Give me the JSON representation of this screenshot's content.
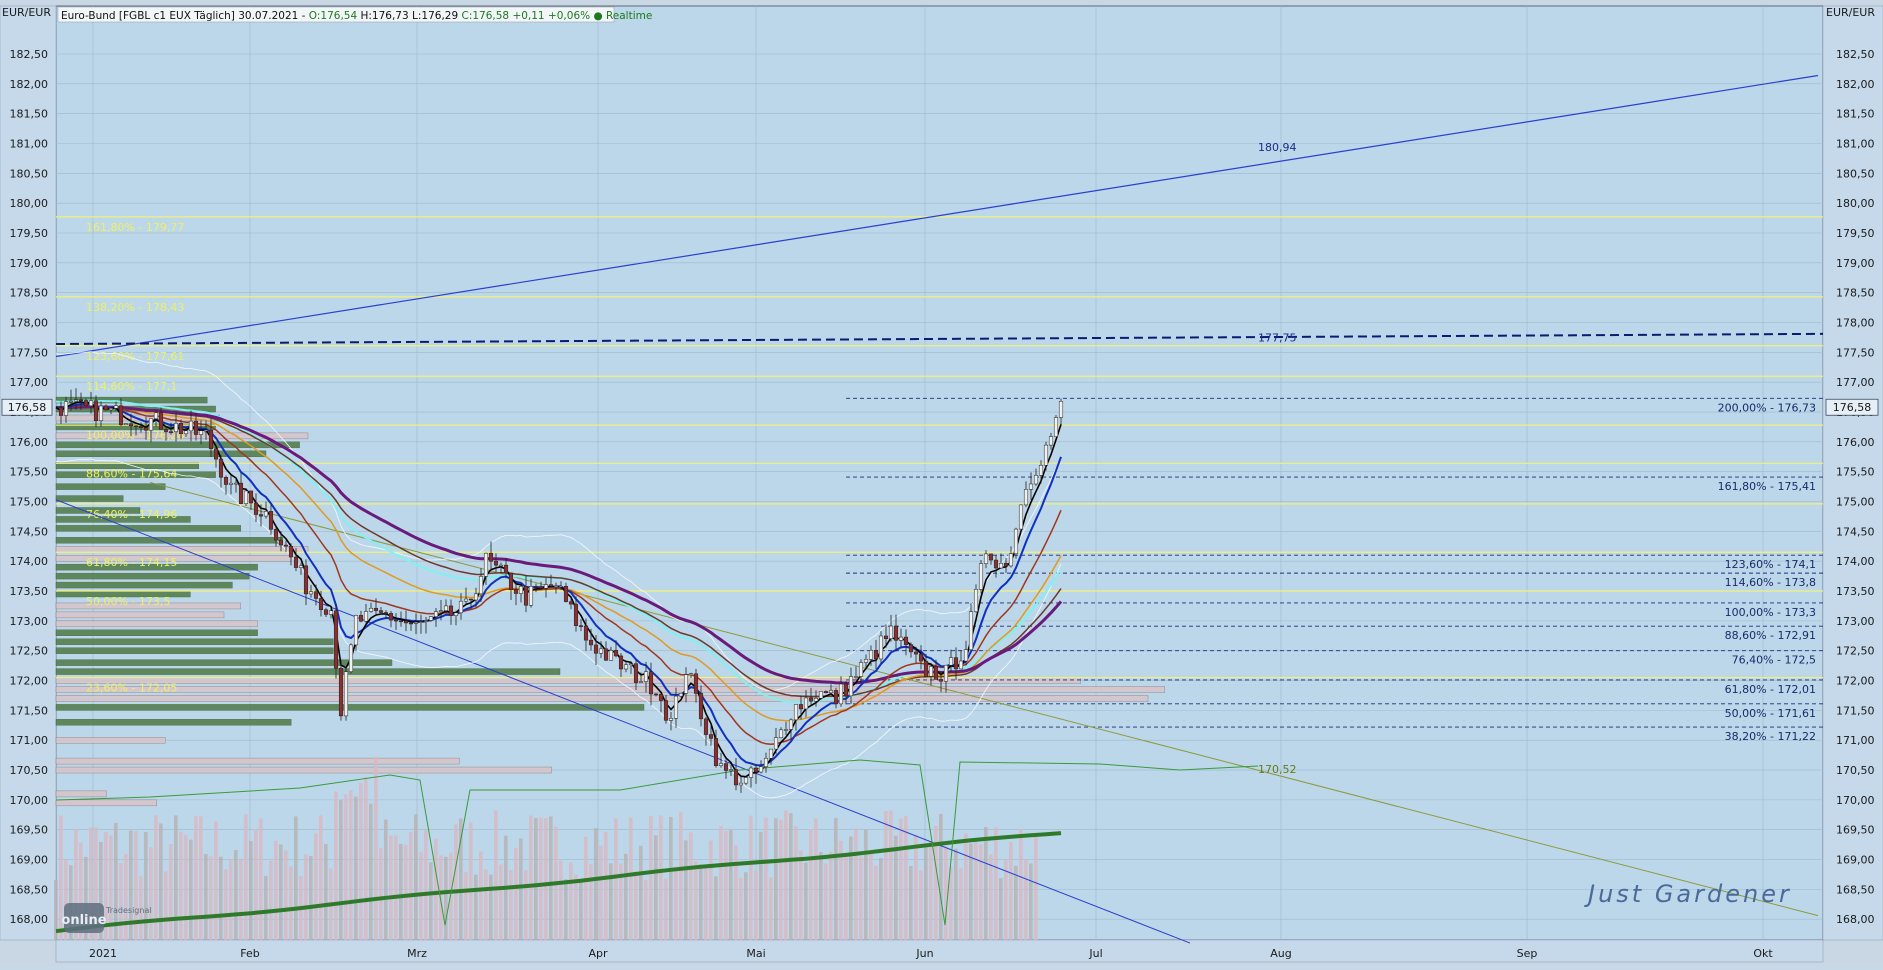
{
  "chart_data": {
    "type": "candlestick",
    "title": "Euro-Bund [FGBL c1 EUX Täglich] 30.07.2021",
    "quote": {
      "open": "O:176,54",
      "high": "H:176,73",
      "low": "L:176,29",
      "close": "C:176,58",
      "change": "+0,11",
      "change_pct": "+0,06%",
      "mode": "Realtime"
    },
    "currency_label": "EUR/EUR",
    "last_price_label": "176,58",
    "last_price": 176.58,
    "ylim": [
      167.6,
      183.1
    ],
    "y_ticks": [
      168.0,
      168.5,
      169.0,
      169.5,
      170.0,
      170.5,
      171.0,
      171.5,
      172.0,
      172.5,
      173.0,
      173.5,
      174.0,
      174.5,
      175.0,
      175.5,
      176.0,
      176.5,
      177.0,
      177.5,
      178.0,
      178.5,
      179.0,
      179.5,
      180.0,
      180.5,
      181.0,
      181.5,
      182.0,
      182.5
    ],
    "y_tick_labels": [
      "168,00",
      "168,50",
      "169,00",
      "169,50",
      "170,00",
      "170,50",
      "171,00",
      "171,50",
      "172,00",
      "172,50",
      "173,00",
      "173,50",
      "174,00",
      "174,50",
      "175,00",
      "175,50",
      "176,00",
      "176,50",
      "177,00",
      "177,50",
      "178,00",
      "178,50",
      "179,00",
      "179,50",
      "180,00",
      "180,50",
      "181,00",
      "181,50",
      "182,00",
      "182,50"
    ],
    "x_labels": [
      "2021",
      "Feb",
      "Mrz",
      "Apr",
      "Mai",
      "Jun",
      "Jul",
      "Aug",
      "Sep",
      "Okt"
    ],
    "watermark": "Just Gardener",
    "logo_text": "online",
    "logo_subtext": "Tradesignal",
    "yellow_fib_levels": [
      {
        "label": "161,80% - 179,77",
        "value": 179.77
      },
      {
        "label": "138,20% - 178,43",
        "value": 178.43
      },
      {
        "label": "123,60% - 177,61",
        "value": 177.61
      },
      {
        "label": "114,60% - 177,1",
        "value": 177.1
      },
      {
        "label": "100,00% - 176,28",
        "value": 176.28
      },
      {
        "label": "88,60% - 175,64",
        "value": 175.64
      },
      {
        "label": "76,40% - 174,96",
        "value": 174.96
      },
      {
        "label": "61,80% - 174,15",
        "value": 174.15
      },
      {
        "label": "50,00% - 173,5",
        "value": 173.5
      },
      {
        "label": "23,60% - 172,05",
        "value": 172.05
      }
    ],
    "dark_fib_levels": [
      {
        "label": "200,00% - 176,73",
        "value": 176.73
      },
      {
        "label": "161,80% - 175,41",
        "value": 175.41
      },
      {
        "label": "123,60% - 174,1",
        "value": 174.1
      },
      {
        "label": "114,60% - 173,8",
        "value": 173.8
      },
      {
        "label": "100,00% - 173,3",
        "value": 173.3
      },
      {
        "label": "88,60% - 172,91",
        "value": 172.91
      },
      {
        "label": "76,40% - 172,5",
        "value": 172.5
      },
      {
        "label": "61,80% - 172,01",
        "value": 172.01
      },
      {
        "label": "50,00% - 171,61",
        "value": 171.61
      },
      {
        "label": "38,20% - 171,22",
        "value": 171.22
      }
    ],
    "annotations": [
      {
        "label": "180,94",
        "value": 180.94
      },
      {
        "label": "177,75",
        "value": 177.75
      },
      {
        "label": "170,52",
        "value": 170.52
      }
    ],
    "trendlines": {
      "upper_blue": [
        177.43,
        182.14
      ],
      "dashed_resistance": [
        177.64,
        177.81
      ],
      "olive": [
        175.32,
        168.06
      ],
      "lower_blue": [
        175.03,
        167.6
      ]
    },
    "colors": {
      "plot_bg": "#bcd7ea",
      "fib_yellow": "#f2f27a",
      "fib_dark": "#1f2a7a",
      "trend_blue": "#2a3fcf",
      "resistance": "#0d1a73",
      "olive": "#8c9a3c",
      "bull": "#f0f0f0",
      "bear": "#8b3030",
      "ma_black": "#000000",
      "ma_blue": "#1030c0",
      "ma_purple": "#6a1a7a",
      "ma_brown": "#6b3a2a",
      "ma_orange": "#e09a20",
      "ma_cyan": "#80f0f0",
      "ma_green": "#2f7a2a",
      "volume": "#c4b4b8"
    }
  }
}
